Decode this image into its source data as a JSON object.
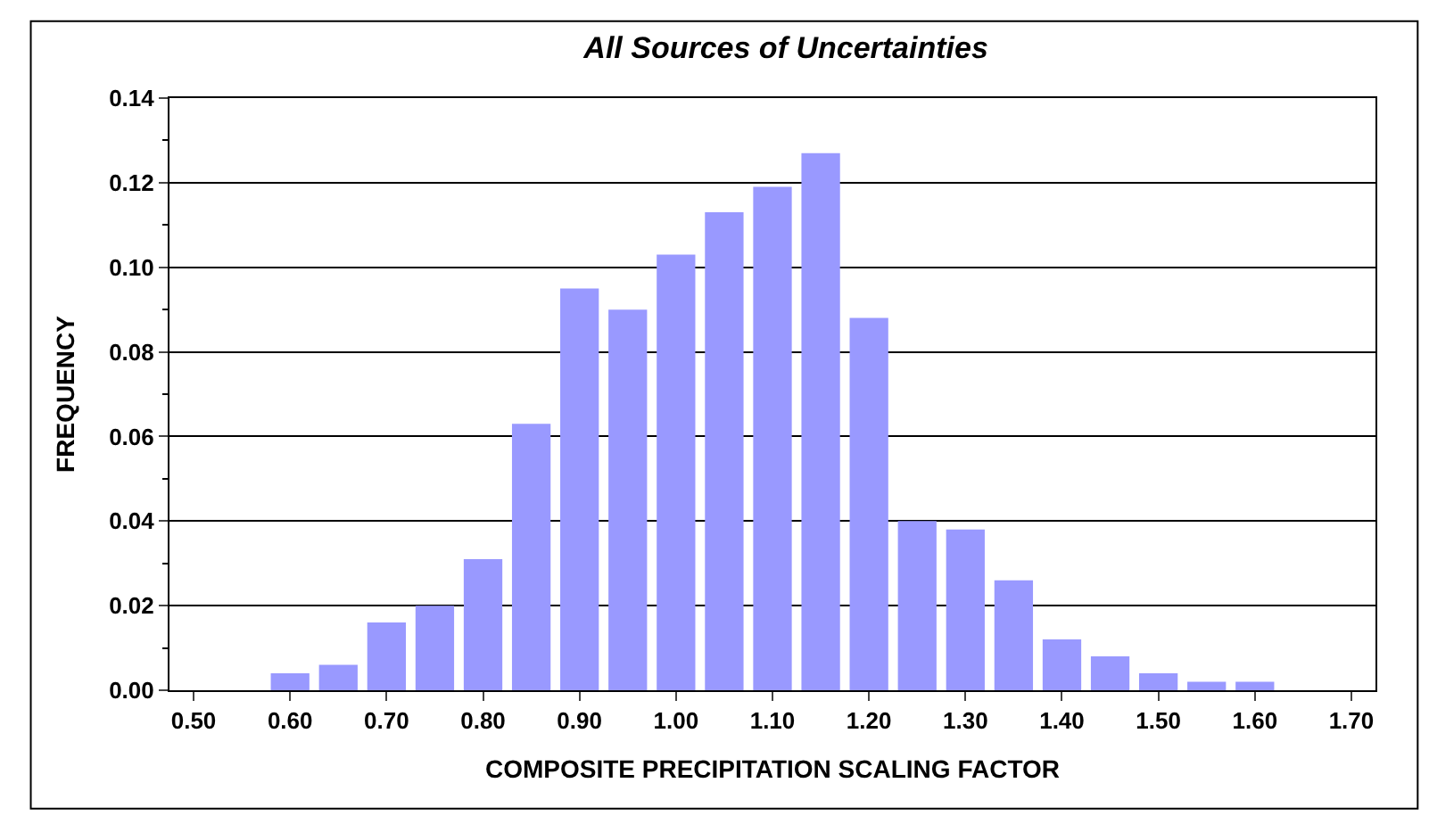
{
  "chart_data": {
    "type": "bar",
    "title": "All Sources of Uncertainties",
    "xlabel": "COMPOSITE PRECIPITATION SCALING FACTOR",
    "ylabel": "FREQUENCY",
    "categories": [
      "0.50",
      null,
      "0.60",
      null,
      "0.70",
      null,
      "0.80",
      null,
      "0.90",
      null,
      "1.00",
      null,
      "1.10",
      null,
      "1.20",
      null,
      "1.30",
      null,
      "1.40",
      null,
      "1.50",
      null,
      "1.60",
      null,
      "1.70"
    ],
    "values": [
      null,
      null,
      0.004,
      0.006,
      0.016,
      0.02,
      0.031,
      0.063,
      0.095,
      0.09,
      0.103,
      0.113,
      0.119,
      0.127,
      0.088,
      0.04,
      0.038,
      0.026,
      0.012,
      0.008,
      0.004,
      0.002,
      0.002,
      null,
      null
    ],
    "color": "#9999ff",
    "ylim": [
      0,
      0.14
    ],
    "yticks": [
      {
        "value": 0,
        "label": "0.00"
      },
      {
        "value": 0.02,
        "label": "0.02"
      },
      {
        "value": 0.04,
        "label": "0.04"
      },
      {
        "value": 0.06,
        "label": "0.06"
      },
      {
        "value": 0.08,
        "label": "0.08"
      },
      {
        "value": 0.1,
        "label": "0.10"
      },
      {
        "value": 0.12,
        "label": "0.12"
      },
      {
        "value": 0.14,
        "label": "0.14"
      }
    ],
    "grid": "y"
  }
}
